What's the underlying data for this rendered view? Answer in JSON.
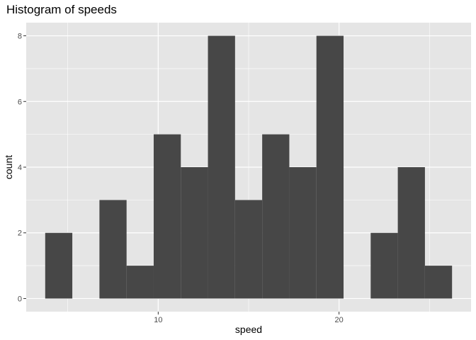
{
  "chart_data": {
    "type": "bar",
    "title": "Histogram of speeds",
    "xlabel": "speed",
    "ylabel": "count",
    "bin_width": 1.5,
    "bins": [
      {
        "start": 3.75,
        "end": 5.25,
        "count": 2
      },
      {
        "start": 5.25,
        "end": 6.75,
        "count": 0
      },
      {
        "start": 6.75,
        "end": 8.25,
        "count": 3
      },
      {
        "start": 8.25,
        "end": 9.75,
        "count": 1
      },
      {
        "start": 9.75,
        "end": 11.25,
        "count": 5
      },
      {
        "start": 11.25,
        "end": 12.75,
        "count": 4
      },
      {
        "start": 12.75,
        "end": 14.25,
        "count": 8
      },
      {
        "start": 14.25,
        "end": 15.75,
        "count": 3
      },
      {
        "start": 15.75,
        "end": 17.25,
        "count": 5
      },
      {
        "start": 17.25,
        "end": 18.75,
        "count": 4
      },
      {
        "start": 18.75,
        "end": 20.25,
        "count": 8
      },
      {
        "start": 20.25,
        "end": 21.75,
        "count": 0
      },
      {
        "start": 21.75,
        "end": 23.25,
        "count": 2
      },
      {
        "start": 23.25,
        "end": 24.75,
        "count": 4
      },
      {
        "start": 24.75,
        "end": 26.25,
        "count": 1
      }
    ],
    "xlim": [
      2.7,
      27.3
    ],
    "ylim": [
      -0.4,
      8.4
    ],
    "x_ticks": [
      10,
      20
    ],
    "x_tick_labels": [
      "10",
      "20"
    ],
    "x_minor_ticks": [
      5,
      15,
      25
    ],
    "y_ticks": [
      0,
      2,
      4,
      6,
      8
    ],
    "y_tick_labels": [
      "0",
      "2",
      "4",
      "6",
      "8"
    ],
    "y_minor_ticks": [
      1,
      3,
      5,
      7
    ],
    "grid": true,
    "colors": {
      "bar": "#474747",
      "panel": "#e5e5e5",
      "grid": "#ffffff",
      "tick": "#333333"
    }
  }
}
